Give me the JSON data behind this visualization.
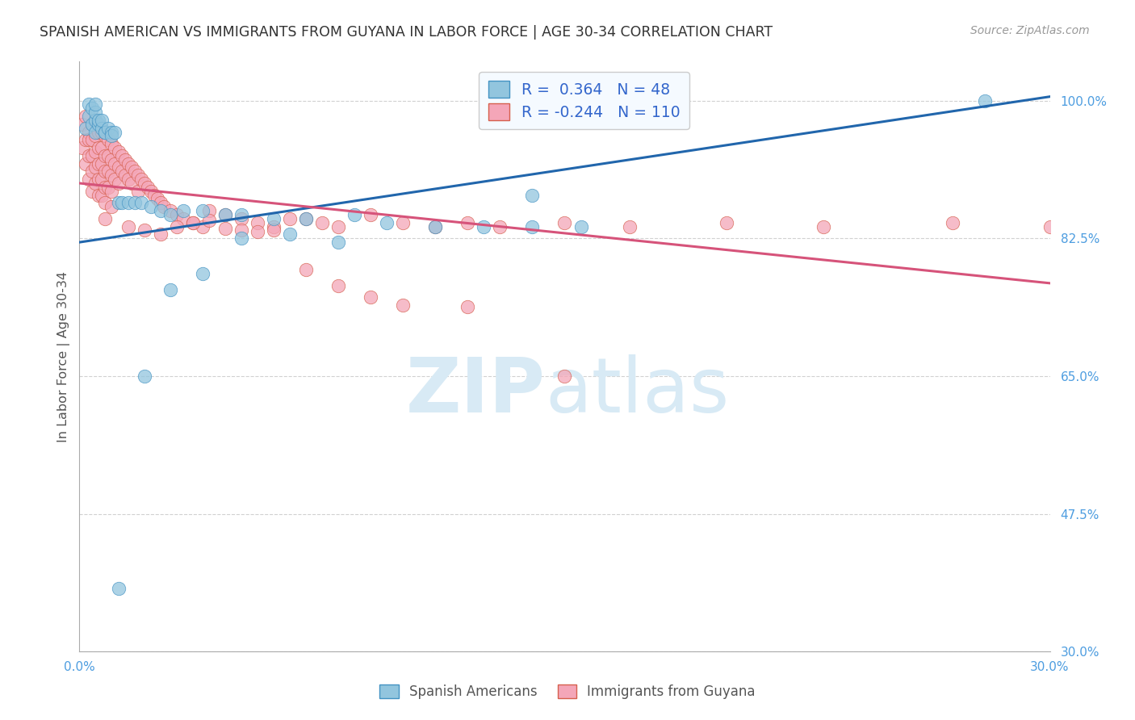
{
  "title": "SPANISH AMERICAN VS IMMIGRANTS FROM GUYANA IN LABOR FORCE | AGE 30-34 CORRELATION CHART",
  "source": "Source: ZipAtlas.com",
  "ylabel": "In Labor Force | Age 30-34",
  "xlim": [
    0.0,
    0.3
  ],
  "ylim": [
    0.3,
    1.05
  ],
  "yticks": [
    0.3,
    0.475,
    0.65,
    0.825,
    1.0
  ],
  "ytick_labels": [
    "30.0%",
    "47.5%",
    "65.0%",
    "82.5%",
    "100.0%"
  ],
  "xticks": [
    0.0,
    0.05,
    0.1,
    0.15,
    0.2,
    0.25,
    0.3
  ],
  "xtick_labels": [
    "0.0%",
    "",
    "",
    "",
    "",
    "",
    "30.0%"
  ],
  "blue_R": 0.364,
  "blue_N": 48,
  "pink_R": -0.244,
  "pink_N": 110,
  "blue_line_x": [
    0.0,
    0.3
  ],
  "blue_line_y": [
    0.82,
    1.005
  ],
  "pink_line_x": [
    0.0,
    0.3
  ],
  "pink_line_y": [
    0.895,
    0.768
  ],
  "blue_color": "#92c5de",
  "pink_color": "#f4a6b8",
  "blue_edge": "#4393c3",
  "pink_edge": "#d6604d",
  "blue_scatter_x": [
    0.002,
    0.003,
    0.003,
    0.004,
    0.004,
    0.005,
    0.005,
    0.005,
    0.005,
    0.006,
    0.006,
    0.007,
    0.007,
    0.008,
    0.008,
    0.009,
    0.01,
    0.01,
    0.011,
    0.012,
    0.013,
    0.015,
    0.017,
    0.019,
    0.022,
    0.025,
    0.028,
    0.032,
    0.038,
    0.045,
    0.05,
    0.06,
    0.07,
    0.085,
    0.095,
    0.11,
    0.125,
    0.14,
    0.155,
    0.05,
    0.065,
    0.08,
    0.038,
    0.028,
    0.02,
    0.14,
    0.28,
    0.012
  ],
  "blue_scatter_y": [
    0.965,
    0.98,
    0.995,
    0.97,
    0.99,
    0.975,
    0.985,
    0.995,
    0.96,
    0.97,
    0.975,
    0.965,
    0.975,
    0.96,
    0.96,
    0.965,
    0.96,
    0.955,
    0.96,
    0.87,
    0.87,
    0.87,
    0.87,
    0.87,
    0.865,
    0.86,
    0.855,
    0.86,
    0.86,
    0.855,
    0.855,
    0.85,
    0.85,
    0.855,
    0.845,
    0.84,
    0.84,
    0.84,
    0.84,
    0.825,
    0.83,
    0.82,
    0.78,
    0.76,
    0.65,
    0.88,
    1.0,
    0.38
  ],
  "pink_scatter_x": [
    0.001,
    0.001,
    0.002,
    0.002,
    0.002,
    0.003,
    0.003,
    0.003,
    0.003,
    0.004,
    0.004,
    0.004,
    0.004,
    0.004,
    0.005,
    0.005,
    0.005,
    0.005,
    0.005,
    0.006,
    0.006,
    0.006,
    0.006,
    0.006,
    0.007,
    0.007,
    0.007,
    0.007,
    0.007,
    0.008,
    0.008,
    0.008,
    0.008,
    0.008,
    0.008,
    0.009,
    0.009,
    0.009,
    0.009,
    0.01,
    0.01,
    0.01,
    0.01,
    0.01,
    0.011,
    0.011,
    0.011,
    0.012,
    0.012,
    0.012,
    0.013,
    0.013,
    0.014,
    0.014,
    0.015,
    0.015,
    0.016,
    0.016,
    0.017,
    0.018,
    0.018,
    0.019,
    0.02,
    0.021,
    0.022,
    0.023,
    0.024,
    0.025,
    0.026,
    0.028,
    0.03,
    0.032,
    0.035,
    0.038,
    0.04,
    0.045,
    0.05,
    0.055,
    0.06,
    0.065,
    0.07,
    0.075,
    0.08,
    0.09,
    0.1,
    0.11,
    0.12,
    0.13,
    0.15,
    0.17,
    0.2,
    0.23,
    0.27,
    0.3,
    0.015,
    0.02,
    0.025,
    0.03,
    0.035,
    0.04,
    0.045,
    0.05,
    0.055,
    0.06,
    0.07,
    0.08,
    0.09,
    0.1,
    0.12,
    0.15
  ],
  "pink_scatter_y": [
    0.94,
    0.97,
    0.95,
    0.98,
    0.92,
    0.96,
    0.95,
    0.93,
    0.9,
    0.97,
    0.95,
    0.93,
    0.91,
    0.885,
    0.975,
    0.955,
    0.935,
    0.915,
    0.895,
    0.96,
    0.94,
    0.92,
    0.9,
    0.88,
    0.96,
    0.94,
    0.92,
    0.9,
    0.88,
    0.955,
    0.93,
    0.91,
    0.89,
    0.87,
    0.85,
    0.95,
    0.93,
    0.91,
    0.89,
    0.945,
    0.925,
    0.905,
    0.885,
    0.865,
    0.94,
    0.92,
    0.9,
    0.935,
    0.915,
    0.895,
    0.93,
    0.91,
    0.925,
    0.905,
    0.92,
    0.9,
    0.915,
    0.895,
    0.91,
    0.905,
    0.885,
    0.9,
    0.895,
    0.89,
    0.885,
    0.88,
    0.875,
    0.87,
    0.865,
    0.86,
    0.855,
    0.85,
    0.845,
    0.84,
    0.86,
    0.855,
    0.85,
    0.845,
    0.84,
    0.85,
    0.85,
    0.845,
    0.84,
    0.855,
    0.845,
    0.84,
    0.845,
    0.84,
    0.845,
    0.84,
    0.845,
    0.84,
    0.845,
    0.84,
    0.84,
    0.835,
    0.83,
    0.84,
    0.845,
    0.848,
    0.838,
    0.835,
    0.833,
    0.835,
    0.785,
    0.765,
    0.75,
    0.74,
    0.738,
    0.65
  ],
  "watermark_zip": "ZIP",
  "watermark_atlas": "atlas",
  "watermark_color": "#d8eaf5",
  "background_color": "#ffffff",
  "grid_color": "#cccccc",
  "title_color": "#333333",
  "axis_label_color": "#555555",
  "tick_color": "#4d9de0",
  "legend_bg": "#f5faff",
  "legend_edge": "#cccccc",
  "legend_text_color": "#1a1a2e",
  "legend_value_color": "#3366cc",
  "bottom_legend_color": "#555555"
}
